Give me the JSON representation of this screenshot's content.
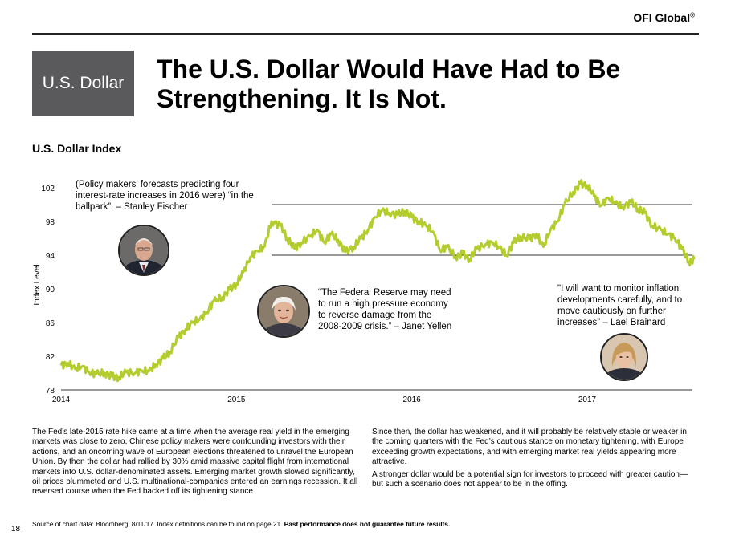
{
  "brand": {
    "name": "OFI Global",
    "mark": "®"
  },
  "section_label": "U.S. Dollar",
  "title": "The U.S. Dollar Would Have Had to Be Strengthening.  It Is Not.",
  "chart_title": "U.S. Dollar Index",
  "quotes": {
    "fischer": "(Policy makers’ forecasts predicting four interest-rate increases in 2016 were) “in the ballpark”. – Stanley Fischer",
    "yellen": "“The Federal Reserve may need to run a high pressure economy to reverse damage from the 2008-2009 crisis.” – Janet Yellen",
    "brainard": "\"I will want to monitor inflation developments carefully, and to move cautiously on further increases” – Lael Brainard"
  },
  "chart_data": {
    "type": "line",
    "title": "U.S. Dollar Index",
    "xlabel": "",
    "ylabel": "Index Level",
    "xlim": [
      2014.0,
      2017.6
    ],
    "ylim": [
      78,
      102
    ],
    "yticks": [
      78,
      82,
      86,
      90,
      94,
      98,
      102
    ],
    "xticks": [
      2014,
      2015,
      2016,
      2017
    ],
    "xtick_labels": [
      "2014",
      "2015",
      "2016",
      "2017"
    ],
    "reference_lines": [
      94,
      100
    ],
    "series": [
      {
        "color": "#b5cc2e",
        "x": [
          2014.0,
          2014.04,
          2014.08,
          2014.12,
          2014.16,
          2014.2,
          2014.25,
          2014.29,
          2014.33,
          2014.37,
          2014.42,
          2014.46,
          2014.5,
          2014.54,
          2014.58,
          2014.62,
          2014.67,
          2014.71,
          2014.75,
          2014.79,
          2014.83,
          2014.87,
          2014.92,
          2014.96,
          2015.0,
          2015.04,
          2015.08,
          2015.12,
          2015.16,
          2015.2,
          2015.25,
          2015.29,
          2015.33,
          2015.37,
          2015.42,
          2015.46,
          2015.5,
          2015.54,
          2015.58,
          2015.62,
          2015.67,
          2015.71,
          2015.75,
          2015.79,
          2015.83,
          2015.87,
          2015.92,
          2015.96,
          2016.0,
          2016.04,
          2016.08,
          2016.12,
          2016.16,
          2016.2,
          2016.25,
          2016.29,
          2016.33,
          2016.37,
          2016.42,
          2016.46,
          2016.5,
          2016.54,
          2016.58,
          2016.62,
          2016.67,
          2016.71,
          2016.75,
          2016.79,
          2016.83,
          2016.87,
          2016.92,
          2016.96,
          2017.0,
          2017.04,
          2017.08,
          2017.12,
          2017.16,
          2017.2,
          2017.25,
          2017.29,
          2017.33,
          2017.37,
          2017.42,
          2017.46,
          2017.5,
          2017.54,
          2017.58,
          2017.61
        ],
        "values": [
          80.9,
          81.2,
          80.5,
          80.8,
          80.1,
          79.9,
          80.0,
          79.6,
          79.5,
          80.1,
          80.0,
          80.3,
          80.2,
          81.0,
          81.7,
          82.5,
          84.3,
          85.2,
          86.0,
          86.4,
          87.2,
          88.5,
          89.0,
          89.9,
          90.6,
          92.0,
          93.8,
          94.5,
          95.0,
          98.0,
          97.5,
          96.0,
          94.8,
          95.5,
          96.2,
          97.0,
          95.5,
          96.5,
          95.8,
          94.4,
          95.0,
          96.0,
          97.0,
          98.5,
          99.3,
          99.0,
          98.8,
          99.2,
          98.5,
          98.0,
          97.5,
          96.8,
          94.6,
          95.0,
          93.8,
          94.2,
          93.5,
          94.8,
          95.3,
          95.5,
          94.9,
          94.0,
          95.5,
          96.2,
          95.9,
          96.5,
          95.0,
          97.0,
          98.0,
          100.0,
          101.5,
          102.5,
          102.3,
          101.0,
          99.9,
          100.8,
          100.2,
          99.7,
          100.3,
          99.5,
          99.0,
          97.5,
          97.0,
          96.5,
          96.0,
          94.8,
          93.2,
          93.5
        ]
      }
    ]
  },
  "body_left": "The Fed's late-2015 rate hike came at a time when the average real yield in the emerging markets was close to zero, Chinese policy makers were confounding investors with their actions, and an oncoming wave of European elections threatened to unravel the European Union. By then the dollar had rallied by 30% amid massive capital flight from international markets into U.S. dollar-denominated assets. Emerging market growth slowed significantly, oil prices plummeted and U.S. multinational-companies entered an earnings recession. It all reversed course when the Fed backed off its tightening stance.",
  "body_right_1": "Since then, the dollar has weakened, and it will probably be relatively stable or weaker in the coming quarters with the Fed’s cautious stance on monetary tightening, with Europe exceeding growth expectations, and with emerging market real yields appearing more attractive.",
  "body_right_2": "A stronger dollar would be a potential sign for investors to proceed with greater caution—but such a scenario does not appear to be in the offing.",
  "source_text": "Source of chart data: Bloomberg, 8/11/17. Index definitions can be found on page 21. ",
  "source_bold": "Past performance does not guarantee future results.",
  "page_number": "18"
}
